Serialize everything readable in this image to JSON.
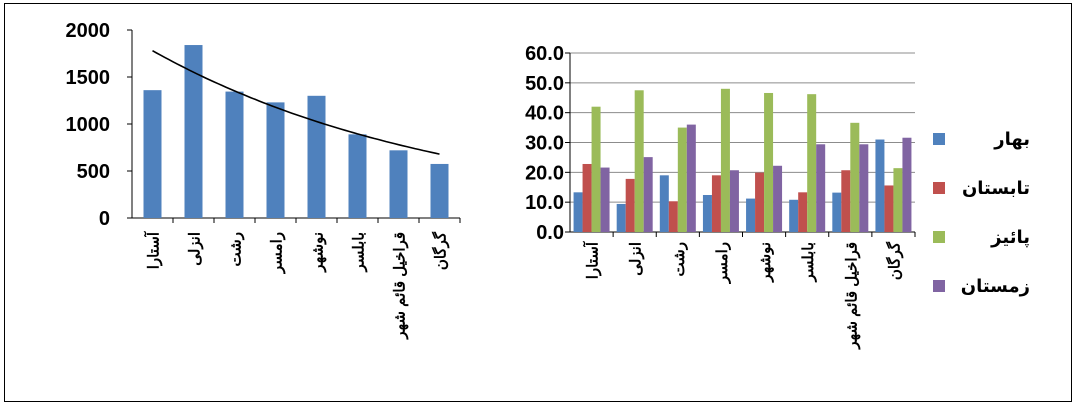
{
  "chart_data": [
    {
      "type": "bar",
      "title": "",
      "xlabel": "",
      "ylabel": "",
      "categories": [
        "آستارا",
        "انزلی",
        "رشت",
        "رامسر",
        "نوشهر",
        "بابلسر",
        "قراخیل قائم شهر",
        "گرگان"
      ],
      "values": [
        1360,
        1840,
        1345,
        1230,
        1300,
        890,
        720,
        575
      ],
      "ylim": [
        0,
        2000
      ],
      "yticks": [
        0,
        500,
        1000,
        1500,
        2000
      ],
      "trendline": {
        "type": "exponential-decay",
        "start": 1780,
        "end": 680
      },
      "grid": false,
      "legend": "none",
      "colors": {
        "bar": "#4F81BD",
        "trend": "#000000"
      }
    },
    {
      "type": "bar",
      "title": "",
      "xlabel": "",
      "ylabel": "",
      "categories": [
        "آستارا",
        "انزلی",
        "رشت",
        "رامسر",
        "نوشهر",
        "بابلسر",
        "قراخیل قائم شهر",
        "گرگان"
      ],
      "series": [
        {
          "name": "بهار",
          "values": [
            13.3,
            9.4,
            19.0,
            12.4,
            11.2,
            10.8,
            13.2,
            31.0
          ],
          "color": "#4F81BD"
        },
        {
          "name": "تابستان",
          "values": [
            22.8,
            17.8,
            10.3,
            19.0,
            19.9,
            13.3,
            20.7,
            15.6
          ],
          "color": "#C0504D"
        },
        {
          "name": "پائیز",
          "values": [
            42.0,
            47.5,
            35.0,
            48.0,
            46.6,
            46.2,
            36.6,
            21.4
          ],
          "color": "#9BBB59"
        },
        {
          "name": "زمستان",
          "values": [
            21.6,
            25.1,
            36.0,
            20.7,
            22.2,
            29.4,
            29.4,
            31.6
          ],
          "color": "#8064A2"
        }
      ],
      "ylim": [
        0,
        60
      ],
      "yticks": [
        "0.0",
        "10.0",
        "20.0",
        "30.0",
        "40.0",
        "50.0",
        "60.0"
      ],
      "grid": true,
      "legend": "right"
    }
  ]
}
